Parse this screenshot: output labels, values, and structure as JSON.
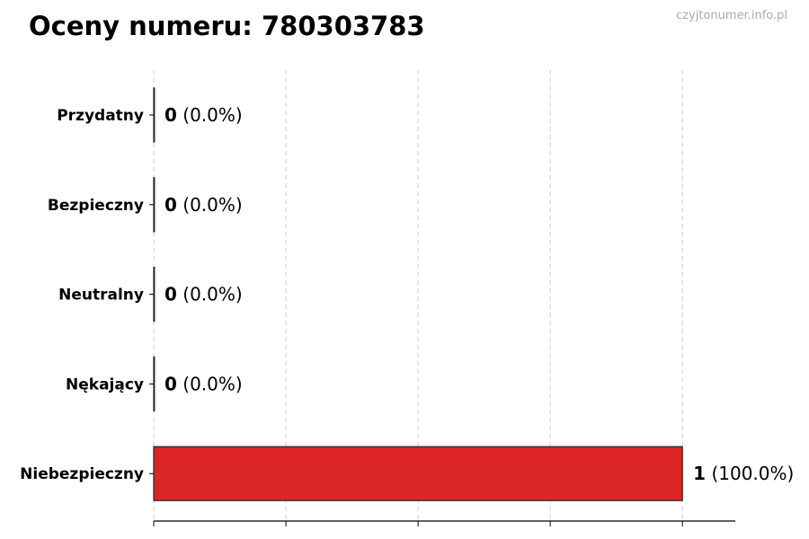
{
  "title": "Oceny numeru: 780303783",
  "watermark": "czyjtonumer.info.pl",
  "colors": {
    "bar": "#dc2626",
    "edge": "#222222",
    "grid": "#cccccc"
  },
  "chart_data": {
    "type": "bar",
    "orientation": "horizontal",
    "title": "Oceny numeru: 780303783",
    "categories": [
      "Przydatny",
      "Bezpieczny",
      "Neutralny",
      "Nękający",
      "Niebezpieczny"
    ],
    "values": [
      0,
      0,
      0,
      0,
      1
    ],
    "labels": [
      "(0.0%)",
      "(0.0%)",
      "(0.0%)",
      "(0.0%)",
      "(100.0%)"
    ],
    "xlim": [
      0,
      1.1
    ],
    "xticks": [
      0,
      0.25,
      0.5,
      0.75,
      1
    ],
    "grid": "x-dashed",
    "xlabel": "",
    "ylabel": ""
  }
}
